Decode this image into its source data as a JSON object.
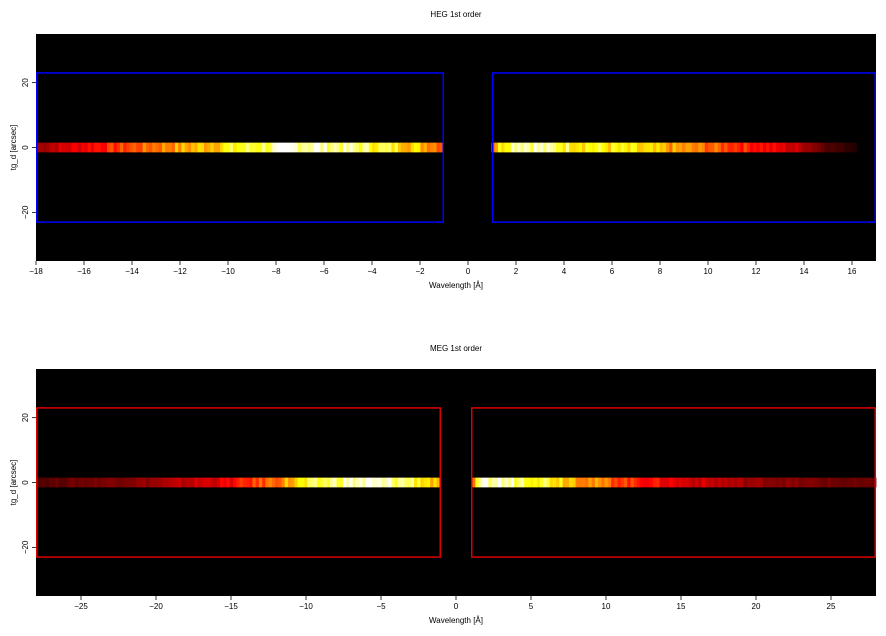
{
  "chart_data": [
    {
      "type": "heatmap",
      "title": "HEG 1st order",
      "xlabel": "Wavelength [Å]",
      "ylabel": "tg_d [arcsec]",
      "xlim": [
        -18,
        17
      ],
      "ylim": [
        -35,
        35
      ],
      "xticks": [
        -18,
        -16,
        -14,
        -12,
        -10,
        -8,
        -6,
        -4,
        -2,
        0,
        2,
        4,
        6,
        8,
        10,
        12,
        14,
        16
      ],
      "xtick_labels": [
        "−18",
        "−16",
        "−14",
        "−12",
        "−10",
        "−8",
        "−6",
        "−4",
        "−2",
        "0",
        "2",
        "4",
        "6",
        "8",
        "10",
        "12",
        "14",
        "16"
      ],
      "yticks": [
        -20,
        0,
        20
      ],
      "ytick_labels": [
        "−20",
        "0",
        "20"
      ],
      "grid": false,
      "background_color": "#000000",
      "colormap": "hot",
      "band": {
        "y_min": -1.5,
        "y_max": 1.5
      },
      "profile": {
        "x": [
          -18,
          -17,
          -15,
          -13,
          -11,
          -9,
          -7,
          -5,
          -3,
          -1.5,
          -1,
          1,
          1.5,
          2,
          4,
          6,
          8,
          10,
          12,
          14,
          15,
          17
        ],
        "intensity": [
          0.22,
          0.3,
          0.42,
          0.55,
          0.66,
          0.8,
          0.96,
          0.88,
          0.75,
          0.6,
          0.5,
          0.55,
          0.8,
          0.99,
          0.8,
          0.72,
          0.62,
          0.52,
          0.4,
          0.26,
          0.12,
          0.0
        ]
      },
      "regions": [
        {
          "x": [
            -18,
            -1
          ],
          "y": [
            -23,
            23
          ],
          "color": "#0000ff"
        },
        {
          "x": [
            1,
            17
          ],
          "y": [
            -23,
            23
          ],
          "color": "#0000ff"
        }
      ]
    },
    {
      "type": "heatmap",
      "title": "MEG 1st order",
      "xlabel": "Wavelength [Å]",
      "ylabel": "tg_d [arcsec]",
      "xlim": [
        -28,
        28
      ],
      "ylim": [
        -35,
        35
      ],
      "xticks": [
        -25,
        -20,
        -15,
        -10,
        -5,
        0,
        5,
        10,
        15,
        20,
        25
      ],
      "xtick_labels": [
        "−25",
        "−20",
        "−15",
        "−10",
        "−5",
        "0",
        "5",
        "10",
        "15",
        "20",
        "25"
      ],
      "yticks": [
        -20,
        0,
        20
      ],
      "ytick_labels": [
        "−20",
        "0",
        "20"
      ],
      "grid": false,
      "background_color": "#000000",
      "colormap": "hot",
      "band": {
        "y_min": -1.5,
        "y_max": 1.5
      },
      "profile": {
        "x": [
          -28,
          -25,
          -20,
          -15,
          -12,
          -10,
          -7,
          -5,
          -3,
          -1.5,
          -1,
          1,
          1.5,
          2,
          4,
          6,
          9,
          12,
          15,
          20,
          25,
          28
        ],
        "intensity": [
          0.12,
          0.16,
          0.22,
          0.35,
          0.55,
          0.72,
          0.95,
          0.9,
          0.85,
          0.65,
          0.5,
          0.5,
          0.72,
          0.95,
          0.9,
          0.8,
          0.58,
          0.42,
          0.32,
          0.22,
          0.16,
          0.14
        ]
      },
      "regions": [
        {
          "x": [
            -28,
            -1
          ],
          "y": [
            -23,
            23
          ],
          "color": "#dd0000"
        },
        {
          "x": [
            1,
            28
          ],
          "y": [
            -23,
            23
          ],
          "color": "#dd0000"
        }
      ]
    }
  ]
}
